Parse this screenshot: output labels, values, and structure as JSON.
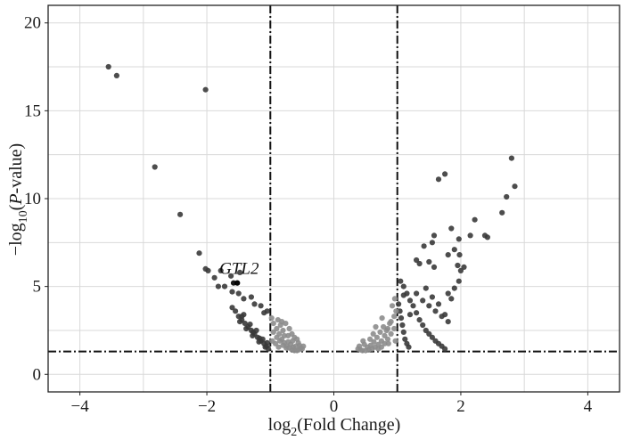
{
  "chart_data": {
    "type": "scatter",
    "title": "",
    "xlabel": {
      "prefix": "log",
      "sub": "2",
      "suffix": "(Fold Change)"
    },
    "ylabel": {
      "prefix": "−log",
      "sub": "10",
      "open": "(",
      "italic": "P",
      "suffix": "-value)"
    },
    "xlim": [
      -4.5,
      4.5
    ],
    "ylim": [
      -1,
      21
    ],
    "x_ticks": [
      -4,
      -2,
      0,
      2,
      4
    ],
    "x_tick_labels": [
      "−4",
      "−2",
      "0",
      "2",
      "4"
    ],
    "y_ticks": [
      0,
      5,
      10,
      15,
      20
    ],
    "y_tick_labels": [
      "0",
      "5",
      "10",
      "15",
      "20"
    ],
    "grid": true,
    "thresholds": {
      "x": [
        -1,
        1
      ],
      "y": 1.3
    },
    "colors": {
      "significant": "#3a3a3a",
      "not_significant": "#8c8c8c",
      "highlight": "#000000"
    },
    "annotations": [
      {
        "text": "GTL2",
        "x": -1.55,
        "y": 5.2
      }
    ],
    "series": [
      {
        "color_key": "significant",
        "points": [
          [
            -3.55,
            17.5
          ],
          [
            -3.42,
            17.0
          ],
          [
            -2.02,
            16.2
          ],
          [
            -2.82,
            11.8
          ],
          [
            -2.42,
            9.1
          ],
          [
            -2.12,
            6.9
          ],
          [
            -2.02,
            6.0
          ],
          [
            -1.98,
            5.9
          ],
          [
            -1.88,
            5.5
          ],
          [
            -1.82,
            5.0
          ],
          [
            -1.72,
            5.0
          ],
          [
            -1.78,
            5.9
          ],
          [
            -1.62,
            5.6
          ],
          [
            -1.48,
            5.8
          ],
          [
            -1.52,
            5.2
          ],
          [
            -1.3,
            4.4
          ],
          [
            -1.6,
            4.7
          ],
          [
            -1.5,
            4.6
          ],
          [
            -1.42,
            4.3
          ],
          [
            -1.25,
            4.0
          ],
          [
            -1.1,
            3.5
          ],
          [
            -1.15,
            3.9
          ],
          [
            -1.05,
            3.6
          ],
          [
            -1.6,
            3.8
          ],
          [
            -1.55,
            3.6
          ],
          [
            -1.5,
            3.3
          ],
          [
            -1.45,
            3.1
          ],
          [
            -1.4,
            2.9
          ],
          [
            -1.35,
            2.7
          ],
          [
            -1.3,
            2.5
          ],
          [
            -1.25,
            2.3
          ],
          [
            -1.2,
            2.1
          ],
          [
            -1.15,
            1.9
          ],
          [
            -1.1,
            1.75
          ],
          [
            -1.06,
            1.6
          ],
          [
            -1.03,
            1.45
          ],
          [
            -1.48,
            3.0
          ],
          [
            -1.38,
            2.6
          ],
          [
            -1.28,
            2.2
          ],
          [
            -1.18,
            1.85
          ],
          [
            -1.08,
            1.55
          ],
          [
            -1.45,
            3.3
          ],
          [
            -1.22,
            2.5
          ],
          [
            -1.12,
            2.0
          ],
          [
            -1.05,
            1.8
          ],
          [
            -1.32,
            2.85
          ],
          [
            -1.42,
            3.4
          ],
          [
            -1.27,
            2.4
          ],
          [
            -1.17,
            2.05
          ],
          [
            1.02,
            4.0
          ],
          [
            1.04,
            3.6
          ],
          [
            1.06,
            3.2
          ],
          [
            1.08,
            2.8
          ],
          [
            1.1,
            2.4
          ],
          [
            1.12,
            2.0
          ],
          [
            1.15,
            1.75
          ],
          [
            1.18,
            1.55
          ],
          [
            1.05,
            5.3
          ],
          [
            1.1,
            5.0
          ],
          [
            1.15,
            4.6
          ],
          [
            1.2,
            4.2
          ],
          [
            1.25,
            3.9
          ],
          [
            1.3,
            3.5
          ],
          [
            1.35,
            3.1
          ],
          [
            1.4,
            2.8
          ],
          [
            1.45,
            2.5
          ],
          [
            1.5,
            2.3
          ],
          [
            1.55,
            2.1
          ],
          [
            1.6,
            1.9
          ],
          [
            1.65,
            1.75
          ],
          [
            1.7,
            1.6
          ],
          [
            1.75,
            1.45
          ],
          [
            1.3,
            4.6
          ],
          [
            1.4,
            4.2
          ],
          [
            1.5,
            3.9
          ],
          [
            1.6,
            3.6
          ],
          [
            1.7,
            3.3
          ],
          [
            1.8,
            3.0
          ],
          [
            1.75,
            3.4
          ],
          [
            1.45,
            4.9
          ],
          [
            1.55,
            4.4
          ],
          [
            1.65,
            4.0
          ],
          [
            1.8,
            4.6
          ],
          [
            1.85,
            4.3
          ],
          [
            1.9,
            4.9
          ],
          [
            1.97,
            5.3
          ],
          [
            2.0,
            5.9
          ],
          [
            2.05,
            6.1
          ],
          [
            1.95,
            6.2
          ],
          [
            1.8,
            6.8
          ],
          [
            1.9,
            7.1
          ],
          [
            1.85,
            8.3
          ],
          [
            1.97,
            7.7
          ],
          [
            1.98,
            6.8
          ],
          [
            1.58,
            6.1
          ],
          [
            1.5,
            6.4
          ],
          [
            1.55,
            7.5
          ],
          [
            1.58,
            7.9
          ],
          [
            1.42,
            7.3
          ],
          [
            1.75,
            11.4
          ],
          [
            1.65,
            11.1
          ],
          [
            2.15,
            7.9
          ],
          [
            2.22,
            8.8
          ],
          [
            2.38,
            7.9
          ],
          [
            2.42,
            7.8
          ],
          [
            2.65,
            9.2
          ],
          [
            2.72,
            10.1
          ],
          [
            2.85,
            10.7
          ],
          [
            2.8,
            12.3
          ],
          [
            1.3,
            6.5
          ],
          [
            1.35,
            6.3
          ],
          [
            1.1,
            4.5
          ],
          [
            1.2,
            3.4
          ]
        ]
      },
      {
        "color_key": "not_significant",
        "points": [
          [
            -0.98,
            3.2
          ],
          [
            -0.95,
            2.9
          ],
          [
            -0.9,
            2.6
          ],
          [
            -0.86,
            2.3
          ],
          [
            -0.82,
            2.0
          ],
          [
            -0.78,
            1.8
          ],
          [
            -0.74,
            1.6
          ],
          [
            -0.7,
            1.5
          ],
          [
            -0.66,
            1.4
          ],
          [
            -0.62,
            1.35
          ],
          [
            -0.58,
            1.35
          ],
          [
            -0.55,
            1.4
          ],
          [
            -0.52,
            1.5
          ],
          [
            -0.5,
            1.45
          ],
          [
            -0.95,
            2.4
          ],
          [
            -0.9,
            2.1
          ],
          [
            -0.85,
            1.9
          ],
          [
            -0.8,
            1.65
          ],
          [
            -0.75,
            1.5
          ],
          [
            -0.68,
            1.7
          ],
          [
            -0.72,
            2.2
          ],
          [
            -0.65,
            1.9
          ],
          [
            -0.6,
            1.6
          ],
          [
            -0.56,
            1.8
          ],
          [
            -0.88,
            3.1
          ],
          [
            -0.84,
            2.8
          ],
          [
            -0.8,
            2.5
          ],
          [
            -0.76,
            2.9
          ],
          [
            -0.7,
            2.6
          ],
          [
            -0.66,
            2.3
          ],
          [
            -0.62,
            2.1
          ],
          [
            -0.58,
            2.0
          ],
          [
            -0.92,
            1.75
          ],
          [
            -0.87,
            1.55
          ],
          [
            -0.97,
            1.9
          ],
          [
            -0.64,
            1.55
          ],
          [
            -0.54,
            1.65
          ],
          [
            -0.48,
            1.6
          ],
          [
            -0.82,
            3.0
          ],
          [
            -0.78,
            2.2
          ],
          [
            -0.72,
            1.85
          ],
          [
            0.98,
            3.6
          ],
          [
            0.95,
            3.3
          ],
          [
            0.9,
            3.0
          ],
          [
            0.85,
            2.6
          ],
          [
            0.8,
            2.2
          ],
          [
            0.75,
            1.9
          ],
          [
            0.7,
            1.7
          ],
          [
            0.65,
            1.55
          ],
          [
            0.6,
            1.45
          ],
          [
            0.55,
            1.4
          ],
          [
            0.5,
            1.35
          ],
          [
            0.45,
            1.35
          ],
          [
            0.42,
            1.4
          ],
          [
            0.38,
            1.45
          ],
          [
            0.95,
            2.6
          ],
          [
            0.9,
            2.3
          ],
          [
            0.85,
            2.0
          ],
          [
            0.8,
            1.75
          ],
          [
            0.75,
            1.55
          ],
          [
            0.7,
            1.45
          ],
          [
            0.68,
            2.1
          ],
          [
            0.63,
            1.85
          ],
          [
            0.58,
            1.65
          ],
          [
            0.53,
            1.55
          ],
          [
            0.48,
            1.7
          ],
          [
            0.88,
            2.9
          ],
          [
            0.83,
            2.5
          ],
          [
            0.78,
            2.7
          ],
          [
            0.73,
            2.4
          ],
          [
            0.92,
            3.9
          ],
          [
            0.96,
            4.3
          ],
          [
            0.62,
            2.3
          ],
          [
            0.57,
            2.0
          ],
          [
            0.46,
            1.9
          ],
          [
            0.4,
            1.6
          ],
          [
            0.86,
            1.75
          ],
          [
            0.76,
            3.2
          ],
          [
            0.66,
            2.7
          ],
          [
            0.97,
            1.9
          ]
        ]
      },
      {
        "color_key": "highlight",
        "points": [
          [
            -1.52,
            5.2
          ],
          [
            -1.58,
            5.2
          ]
        ]
      }
    ]
  }
}
